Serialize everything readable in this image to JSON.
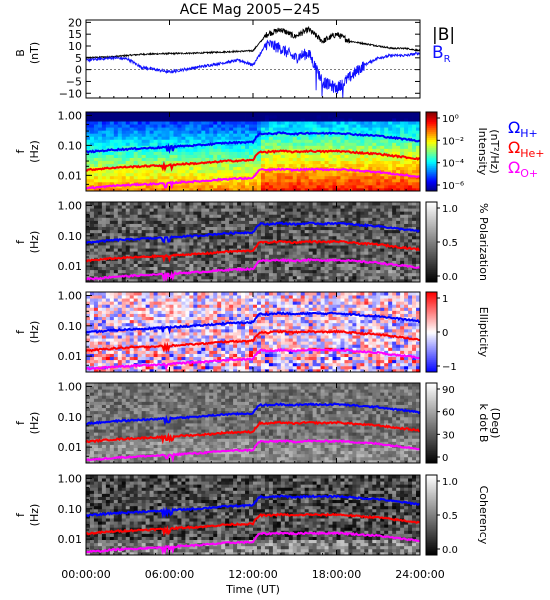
{
  "title": "ACE Mag 2005−245",
  "colors": {
    "b_total": "#000000",
    "b_r": "#1010ff",
    "h": "#0000ff",
    "he": "#ff0000",
    "o": "#ff00ff"
  },
  "chart_data": [
    {
      "type": "line",
      "panel": "B",
      "ylabel": [
        "B",
        "(nT)"
      ],
      "yticks": [
        "20",
        "15",
        "10",
        "5",
        "0",
        "−5",
        "−10"
      ],
      "ylim": [
        -12,
        21
      ],
      "legend": [
        {
          "name": "|B|",
          "color": "#000000"
        },
        {
          "name": "B_R",
          "color": "#1010ff"
        }
      ],
      "series": [
        {
          "name": "|B|",
          "x": [
            0,
            2,
            4,
            6,
            8,
            10,
            12,
            13,
            14,
            15,
            16,
            17,
            18,
            19,
            20,
            21,
            22,
            23,
            24
          ],
          "y": [
            5,
            5.5,
            6.5,
            6.8,
            7,
            7.5,
            8,
            15,
            17,
            14,
            17,
            12,
            15,
            12,
            11,
            10,
            9,
            9,
            8
          ]
        },
        {
          "name": "B_R",
          "x": [
            0,
            1,
            2,
            3,
            4,
            5,
            6,
            7,
            8,
            9,
            10,
            11,
            12,
            13,
            14,
            15,
            16,
            17,
            18,
            19,
            20,
            21,
            22,
            23,
            24
          ],
          "y": [
            4,
            4.5,
            5,
            4.5,
            1,
            0,
            -1,
            0,
            1,
            2,
            3,
            4,
            2,
            11,
            9,
            5,
            7,
            -5,
            -8,
            -3,
            2,
            5,
            6,
            6,
            7
          ]
        }
      ]
    },
    {
      "type": "heatmap",
      "panel": "Intensity",
      "ylabel": [
        "f",
        "(Hz)"
      ],
      "yticks": [
        "1.00",
        "0.10",
        "0.01"
      ],
      "colorbar": {
        "title": "Intensity",
        "units": "(nT²/Hz)",
        "ticks": [
          "10⁰",
          "10⁻²",
          "10⁻⁴",
          "10⁻⁶"
        ]
      },
      "legend": [
        {
          "name": "ΩH+",
          "color": "#0000ff"
        },
        {
          "name": "ΩHe+",
          "color": "#ff0000"
        },
        {
          "name": "ΩO+",
          "color": "#ff00ff"
        }
      ]
    },
    {
      "type": "heatmap",
      "panel": "Polarization",
      "ylabel": [
        "f",
        "(Hz)"
      ],
      "yticks": [
        "1.00",
        "0.10",
        "0.01"
      ],
      "colorbar": {
        "title": "% Polarization",
        "ticks": [
          "1.0",
          "0.5",
          "0.0"
        ]
      }
    },
    {
      "type": "heatmap",
      "panel": "Ellipticity",
      "ylabel": [
        "f",
        "(Hz)"
      ],
      "yticks": [
        "1.00",
        "0.10",
        "0.01"
      ],
      "colorbar": {
        "title": "Ellipticity",
        "ticks": [
          "1",
          "0",
          "−1"
        ]
      }
    },
    {
      "type": "heatmap",
      "panel": "k dot B",
      "ylabel": [
        "f",
        "(Hz)"
      ],
      "yticks": [
        "1.00",
        "0.10",
        "0.01"
      ],
      "colorbar": {
        "title": "k dot B",
        "units": "(Deg)",
        "ticks": [
          "90",
          "60",
          "30",
          "0"
        ]
      }
    },
    {
      "type": "heatmap",
      "panel": "Coherency",
      "ylabel": [
        "f",
        "(Hz)"
      ],
      "yticks": [
        "1.00",
        "0.10",
        "0.01"
      ],
      "colorbar": {
        "title": "Coherency",
        "ticks": [
          "1.0",
          "0.5",
          "0.0"
        ]
      }
    }
  ],
  "gyro": {
    "x": [
      0,
      1,
      2,
      3,
      4,
      5,
      6,
      7,
      8,
      9,
      10,
      11,
      12,
      12.5,
      13,
      14,
      15,
      16,
      17,
      18,
      19,
      20,
      21,
      22,
      23,
      24
    ],
    "h": [
      0.06,
      0.065,
      0.072,
      0.075,
      0.08,
      0.083,
      0.09,
      0.095,
      0.1,
      0.11,
      0.12,
      0.125,
      0.13,
      0.25,
      0.24,
      0.26,
      0.24,
      0.26,
      0.25,
      0.26,
      0.24,
      0.22,
      0.21,
      0.18,
      0.16,
      0.14
    ],
    "he": [
      0.015,
      0.0165,
      0.018,
      0.019,
      0.02,
      0.021,
      0.022,
      0.024,
      0.025,
      0.027,
      0.03,
      0.031,
      0.032,
      0.062,
      0.06,
      0.065,
      0.06,
      0.065,
      0.062,
      0.065,
      0.06,
      0.055,
      0.052,
      0.045,
      0.04,
      0.035
    ],
    "o": [
      0.0038,
      0.004,
      0.0045,
      0.0047,
      0.005,
      0.0052,
      0.0055,
      0.006,
      0.0063,
      0.0068,
      0.0075,
      0.0078,
      0.008,
      0.0155,
      0.015,
      0.016,
      0.015,
      0.016,
      0.0155,
      0.016,
      0.015,
      0.0138,
      0.013,
      0.0112,
      0.01,
      0.0088
    ]
  },
  "xaxis": {
    "ticks": [
      "00:00:00",
      "06:00:00",
      "12:00:00",
      "18:00:00",
      "24:00:00"
    ],
    "label": "Time (UT)",
    "range": [
      0,
      24
    ]
  },
  "freq_range": [
    0.003,
    1.3
  ]
}
